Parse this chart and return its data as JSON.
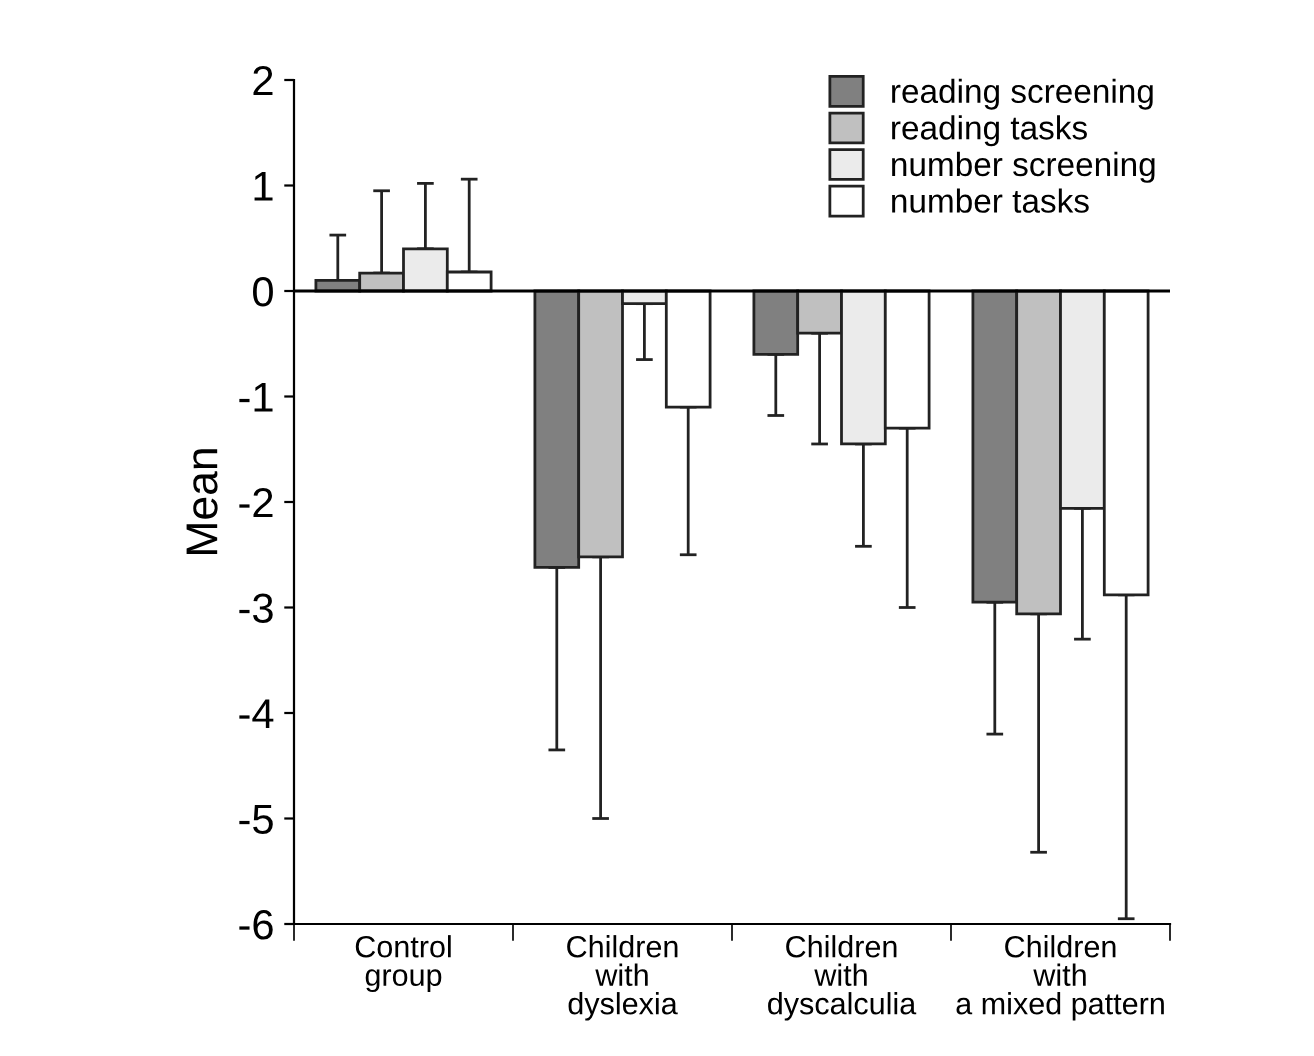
{
  "chart_data": {
    "type": "bar",
    "ylabel": "Mean",
    "categories": [
      "Control\ngroup",
      "Children\nwith\ndyslexia",
      "Children\nwith\ndyscalculia",
      "Children\nwith\na mixed pattern"
    ],
    "series": [
      {
        "name": "reading screening",
        "color": "#808080",
        "values": [
          0.1,
          -2.62,
          -0.6,
          -2.95
        ],
        "errors": [
          [
            0.1,
            0.53
          ],
          [
            -4.35,
            -2.62
          ],
          [
            -1.18,
            -0.6
          ],
          [
            -4.2,
            -2.95
          ]
        ]
      },
      {
        "name": "reading tasks",
        "color": "#c0c0c0",
        "values": [
          0.17,
          -2.52,
          -0.4,
          -3.06
        ],
        "errors": [
          [
            0.17,
            0.95
          ],
          [
            -5.0,
            -2.52
          ],
          [
            -1.45,
            -0.4
          ],
          [
            -5.32,
            -3.06
          ]
        ]
      },
      {
        "name": "number screening",
        "color": "#ebebeb",
        "values": [
          0.4,
          -0.12,
          -1.45,
          -2.06
        ],
        "errors": [
          [
            0.4,
            1.02
          ],
          [
            -0.65,
            -0.12
          ],
          [
            -2.42,
            -1.45
          ],
          [
            -3.3,
            -2.06
          ]
        ]
      },
      {
        "name": "number tasks",
        "color": "#ffffff",
        "values": [
          0.18,
          -1.1,
          -1.3,
          -2.88
        ],
        "errors": [
          [
            0.18,
            1.06
          ],
          [
            -2.5,
            -1.1
          ],
          [
            -3.0,
            -1.3
          ],
          [
            -5.95,
            -2.88
          ]
        ]
      }
    ],
    "ylim": [
      -6,
      2
    ],
    "yticks": [
      -6,
      -5,
      -4,
      -3,
      -2,
      -1,
      0,
      1,
      2
    ],
    "ref_lines": [
      {
        "axis": "y",
        "value": 0,
        "color": "#000000"
      }
    ],
    "grid": false,
    "legend": "top right"
  }
}
